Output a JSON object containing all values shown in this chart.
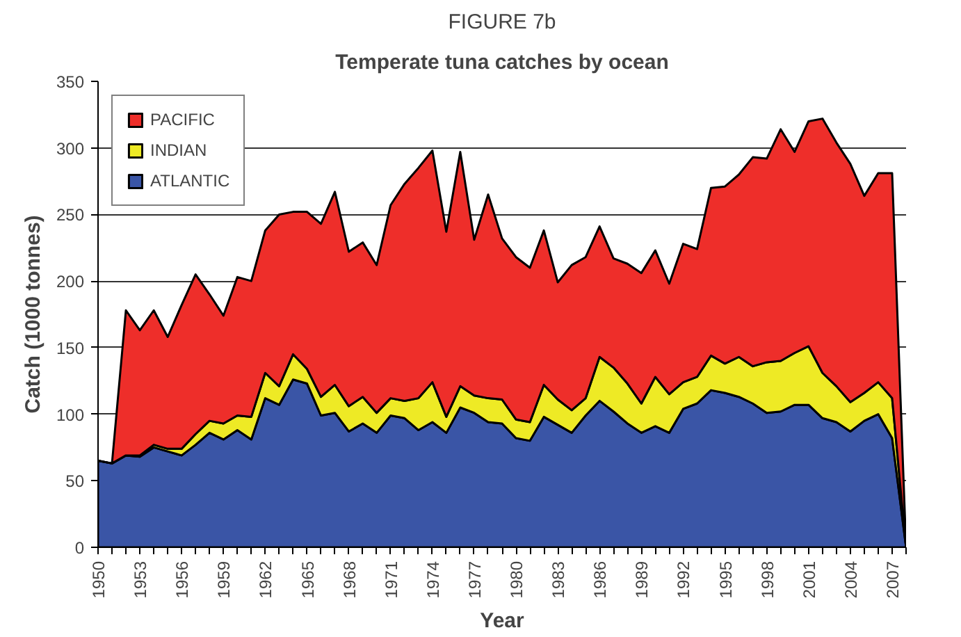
{
  "chart_data": {
    "type": "area",
    "stacked": true,
    "title": "FIGURE 7b",
    "subtitle": "Temperate tuna catches by ocean",
    "xlabel": "Year",
    "ylabel": "Catch (1000 tonnes)",
    "categories": [
      "1950",
      null,
      null,
      "1953",
      null,
      null,
      "1956",
      null,
      null,
      "1959",
      null,
      null,
      "1962",
      null,
      null,
      "1965",
      null,
      null,
      "1968",
      null,
      null,
      "1971",
      null,
      null,
      "1974",
      null,
      null,
      "1977",
      null,
      null,
      "1980",
      null,
      null,
      "1983",
      null,
      null,
      "1986",
      null,
      null,
      "1989",
      null,
      null,
      "1992",
      null,
      null,
      "1995",
      null,
      null,
      "1998",
      null,
      null,
      "2001",
      null,
      null,
      "2004",
      null,
      null,
      "2007",
      null
    ],
    "series": [
      {
        "name": "ATLANTIC",
        "color": "#3a55a6",
        "values": [
          65,
          63,
          69,
          68,
          75,
          72,
          69,
          77,
          86,
          81,
          88,
          81,
          112,
          107,
          126,
          123,
          99,
          101,
          87,
          93,
          86,
          99,
          97,
          88,
          94,
          86,
          105,
          101,
          94,
          93,
          82,
          80,
          98,
          92,
          86,
          99,
          110,
          102,
          93,
          86,
          91,
          86,
          104,
          108,
          118,
          116,
          113,
          108,
          101,
          102,
          107,
          107,
          97,
          94,
          87,
          95,
          100,
          82,
          0
        ]
      },
      {
        "name": "INDIAN",
        "color": "#eeea25",
        "values": [
          0,
          0,
          0,
          1,
          2,
          2,
          5,
          8,
          9,
          12,
          11,
          17,
          19,
          14,
          19,
          11,
          14,
          21,
          19,
          20,
          15,
          13,
          13,
          24,
          30,
          12,
          16,
          13,
          18,
          18,
          14,
          14,
          24,
          19,
          17,
          13,
          33,
          33,
          30,
          22,
          37,
          29,
          20,
          20,
          26,
          22,
          30,
          28,
          38,
          38,
          39,
          44,
          34,
          27,
          22,
          21,
          24,
          30,
          0
        ]
      },
      {
        "name": "PACIFIC",
        "color": "#ee2e2a",
        "values": [
          0,
          0,
          109,
          94,
          101,
          84,
          108,
          120,
          95,
          81,
          104,
          102,
          107,
          129,
          107,
          118,
          130,
          145,
          116,
          116,
          111,
          145,
          163,
          173,
          174,
          139,
          176,
          117,
          153,
          121,
          122,
          116,
          116,
          88,
          109,
          106,
          98,
          82,
          90,
          98,
          95,
          83,
          104,
          96,
          126,
          133,
          137,
          157,
          153,
          174,
          151,
          169,
          191,
          183,
          179,
          148,
          157,
          169,
          0
        ]
      }
    ],
    "ylim": [
      0,
      350
    ],
    "yticks": [
      0,
      50,
      100,
      150,
      200,
      250,
      300,
      350
    ],
    "grid": "y",
    "legend": "top left"
  }
}
